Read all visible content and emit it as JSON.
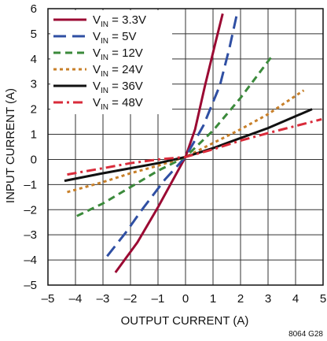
{
  "chart_data": {
    "type": "line",
    "xlabel": "OUTPUT CURRENT (A)",
    "ylabel": "INPUT CURRENT (A)",
    "xlim": [
      -5,
      5
    ],
    "ylim": [
      -5,
      6
    ],
    "x_ticks": [
      -5,
      -4,
      -3,
      -2,
      -1,
      0,
      1,
      2,
      3,
      4,
      5
    ],
    "y_ticks": [
      -5,
      -4,
      -3,
      -2,
      -1,
      0,
      1,
      2,
      3,
      4,
      5,
      6
    ],
    "x_tick_labels": [
      "–5",
      "–4",
      "–3",
      "–2",
      "–1",
      "0",
      "1",
      "2",
      "3",
      "4",
      "5"
    ],
    "y_tick_labels": [
      "–5",
      "–4",
      "–3",
      "–2",
      "–1",
      "0",
      "1",
      "2",
      "3",
      "4",
      "5",
      "6"
    ],
    "grid": true,
    "legend_position": "top-left",
    "figure_id": "8064 G28",
    "series": [
      {
        "name": "VIN = 3.3V",
        "legend_main": "V",
        "legend_sub": "IN",
        "legend_rest": " = 3.3V",
        "color": "#9b0a33",
        "dash": "solid",
        "x": [
          -2.55,
          -1.75,
          -1.0,
          -0.5,
          0,
          0.35,
          0.7,
          1.1,
          1.35
        ],
        "y": [
          -4.5,
          -3.3,
          -1.9,
          -0.9,
          0.1,
          1.2,
          2.9,
          4.7,
          5.8
        ]
      },
      {
        "name": "VIN = 5V",
        "legend_main": "V",
        "legend_sub": "IN",
        "legend_rest": " = 5V",
        "color": "#2f4fa3",
        "dash": "long-dash",
        "x": [
          -2.85,
          -2.2,
          -1.55,
          -0.75,
          0,
          0.65,
          1.25,
          1.6,
          1.85
        ],
        "y": [
          -3.85,
          -2.95,
          -1.95,
          -0.8,
          0.1,
          1.35,
          2.95,
          4.45,
          5.7
        ]
      },
      {
        "name": "VIN = 12V",
        "legend_main": "V",
        "legend_sub": "IN",
        "legend_rest": " = 12V",
        "color": "#3b8a3b",
        "dash": "dash",
        "x": [
          -3.95,
          -3.0,
          -2.0,
          -1.0,
          0,
          1.0,
          2.0,
          3.1
        ],
        "y": [
          -2.25,
          -1.75,
          -1.1,
          -0.45,
          0.1,
          1.15,
          2.45,
          4.05
        ]
      },
      {
        "name": "VIN = 24V",
        "legend_main": "V",
        "legend_sub": "IN",
        "legend_rest": " = 24V",
        "color": "#c8802a",
        "dash": "dot",
        "x": [
          -4.3,
          -3.0,
          -2.0,
          -1.0,
          0,
          1.0,
          2.0,
          3.0,
          4.3
        ],
        "y": [
          -1.3,
          -0.9,
          -0.55,
          -0.25,
          0.1,
          0.65,
          1.2,
          1.8,
          2.75
        ]
      },
      {
        "name": "VIN = 36V",
        "legend_main": "V",
        "legend_sub": "IN",
        "legend_rest": " = 36V",
        "color": "#111111",
        "dash": "solid",
        "x": [
          -4.4,
          -3.0,
          -2.0,
          -1.0,
          0,
          1.0,
          2.0,
          3.0,
          4.6
        ],
        "y": [
          -0.85,
          -0.55,
          -0.35,
          -0.15,
          0.1,
          0.45,
          0.85,
          1.25,
          2.0
        ]
      },
      {
        "name": "VIN = 48V",
        "legend_main": "V",
        "legend_sub": "IN",
        "legend_rest": " = 48V",
        "color": "#d92b3a",
        "dash": "dash-dot",
        "x": [
          -4.3,
          -3.0,
          -2.0,
          -1.0,
          0,
          1.0,
          2.0,
          3.0,
          4.95
        ],
        "y": [
          -0.6,
          -0.35,
          -0.15,
          0.0,
          0.1,
          0.4,
          0.75,
          1.05,
          1.6
        ]
      }
    ]
  }
}
